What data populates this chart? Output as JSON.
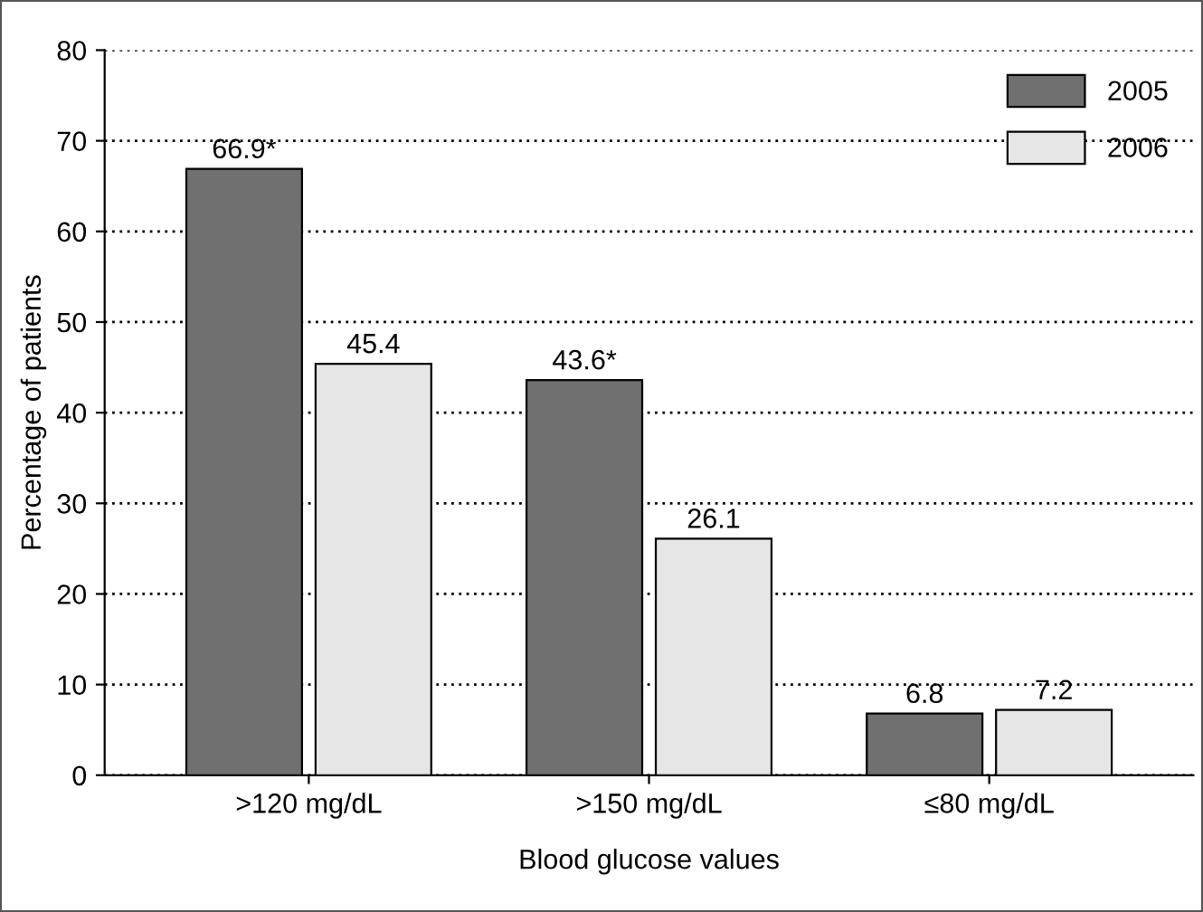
{
  "chart_data": {
    "type": "bar",
    "xlabel": "Blood glucose values",
    "ylabel": "Percentage of patients",
    "categories": [
      ">120 mg/dL",
      ">150 mg/dL",
      "≤80 mg/dL"
    ],
    "series": [
      {
        "name": "2005",
        "color": "#707070",
        "values": [
          66.9,
          43.6,
          6.8
        ],
        "value_labels": [
          "66.9*",
          "43.6*",
          "6.8"
        ]
      },
      {
        "name": "2006",
        "color": "#e6e6e6",
        "values": [
          45.4,
          26.1,
          7.2
        ],
        "value_labels": [
          "45.4",
          "26.1",
          "7.2"
        ]
      }
    ],
    "ylim": [
      0,
      80
    ],
    "yticks": [
      0,
      10,
      20,
      30,
      40,
      50,
      60,
      70,
      80
    ],
    "grid": "y",
    "legend": "top right"
  }
}
